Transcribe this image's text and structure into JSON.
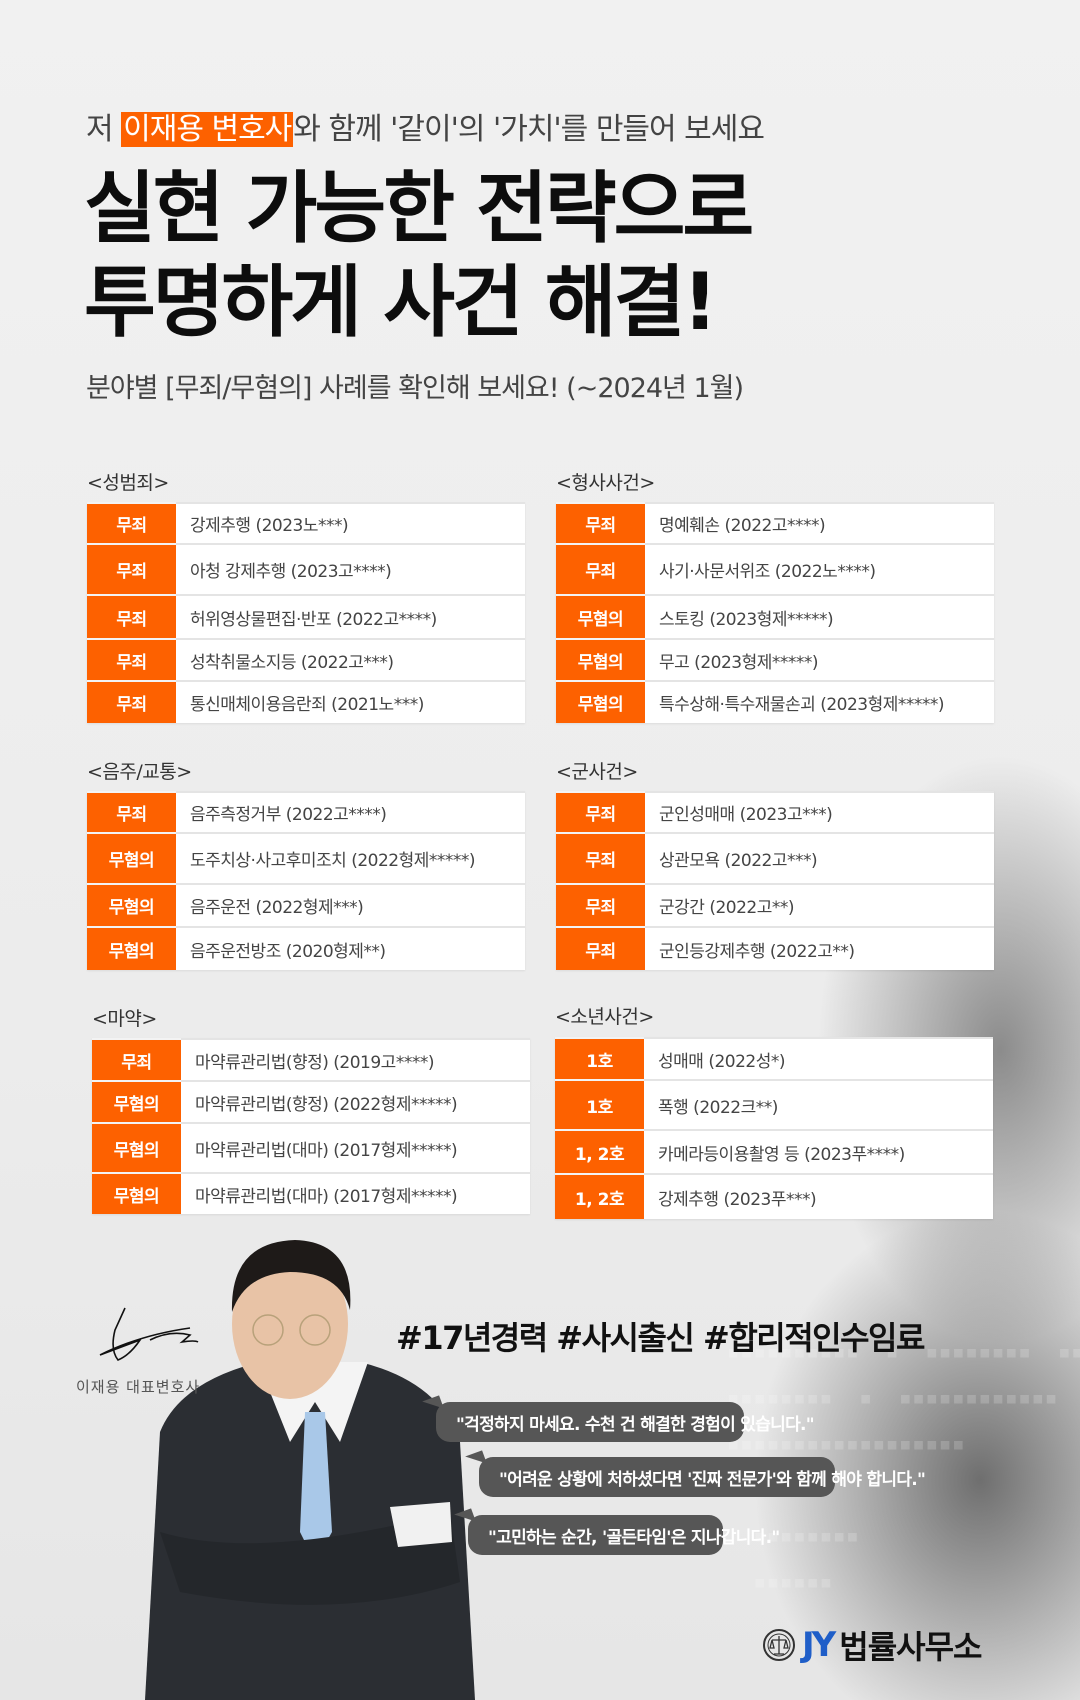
{
  "header": {
    "intro_prefix": "저 ",
    "intro_highlight": "이재용 변호사",
    "intro_suffix": "와 함께 '같이'의 '가치'를 만들어 보세요",
    "title_line1": "실현 가능한 전략으로",
    "title_line2": "투명하게 사건 해결!",
    "subtitle": "분야별 [무죄/무혐의] 사례를 확인해 보세요! (~2024년 1월)"
  },
  "colors": {
    "accent": "#fd6100",
    "bubble": "#565656",
    "logo_blue": "#1f5ec8"
  },
  "sections": [
    {
      "label": "<성범죄>",
      "rows": [
        [
          "무죄",
          "강제추행 (2023노***)"
        ],
        [
          "무죄",
          "아청 강제추행 (2023고****)"
        ],
        [
          "무죄",
          "허위영상물편집·반포 (2022고****)"
        ],
        [
          "무죄",
          "성착취물소지등 (2022고***)"
        ],
        [
          "무죄",
          "통신매체이용음란죄 (2021노***)"
        ]
      ]
    },
    {
      "label": "<형사사건>",
      "rows": [
        [
          "무죄",
          "명예훼손 (2022고****)"
        ],
        [
          "무죄",
          "사기·사문서위조 (2022노****)"
        ],
        [
          "무혐의",
          "스토킹 (2023형제*****)"
        ],
        [
          "무혐의",
          "무고 (2023형제*****)"
        ],
        [
          "무혐의",
          "특수상해·특수재물손괴 (2023형제*****)"
        ]
      ]
    },
    {
      "label": "<음주/교통>",
      "rows": [
        [
          "무죄",
          "음주측정거부 (2022고****)"
        ],
        [
          "무혐의",
          "도주치상·사고후미조치 (2022형제*****)"
        ],
        [
          "무혐의",
          "음주운전 (2022형제***)"
        ],
        [
          "무혐의",
          "음주운전방조  (2020형제**)"
        ]
      ]
    },
    {
      "label": "<군사건>",
      "rows": [
        [
          "무죄",
          "군인성매매 (2023고***)"
        ],
        [
          "무죄",
          "상관모욕 (2022고***)"
        ],
        [
          "무죄",
          "군강간 (2022고**)"
        ],
        [
          "무죄",
          "군인등강제추행 (2022고**)"
        ]
      ]
    },
    {
      "label": "<마약>",
      "rows": [
        [
          "무죄",
          "마약류관리법(향정) (2019고****)"
        ],
        [
          "무혐의",
          "마약류관리법(향정) (2022형제*****)"
        ],
        [
          "무혐의",
          "마약류관리법(대마) (2017형제*****)"
        ],
        [
          "무혐의",
          "마약류관리법(대마) (2017형제*****)"
        ]
      ]
    },
    {
      "label": "<소년사건>",
      "rows": [
        [
          "1호",
          "성매매  (2022성*)"
        ],
        [
          "1호",
          "폭행 (2022크**)"
        ],
        [
          "1, 2호",
          "카메라등이용촬영 등 (2023푸****)"
        ],
        [
          "1, 2호",
          "강제추행 (2023푸***)"
        ]
      ]
    }
  ],
  "profile": {
    "signature_name": "이재용 대표변호사",
    "hashtags": "#17년경력 #사시출신 #합리적인수임료",
    "quotes": [
      "\"걱정하지 마세요. 수천 건 해결한 경험이 있습니다.\"",
      "\"어려운 상황에 처하셨다면 '진짜 전문가'와 함께 해야 합니다.\"",
      "\"고민하는 순간, '골든타임'은 지나갑니다.\""
    ]
  },
  "logo": {
    "mark": "JY",
    "name": "법률사무소"
  }
}
